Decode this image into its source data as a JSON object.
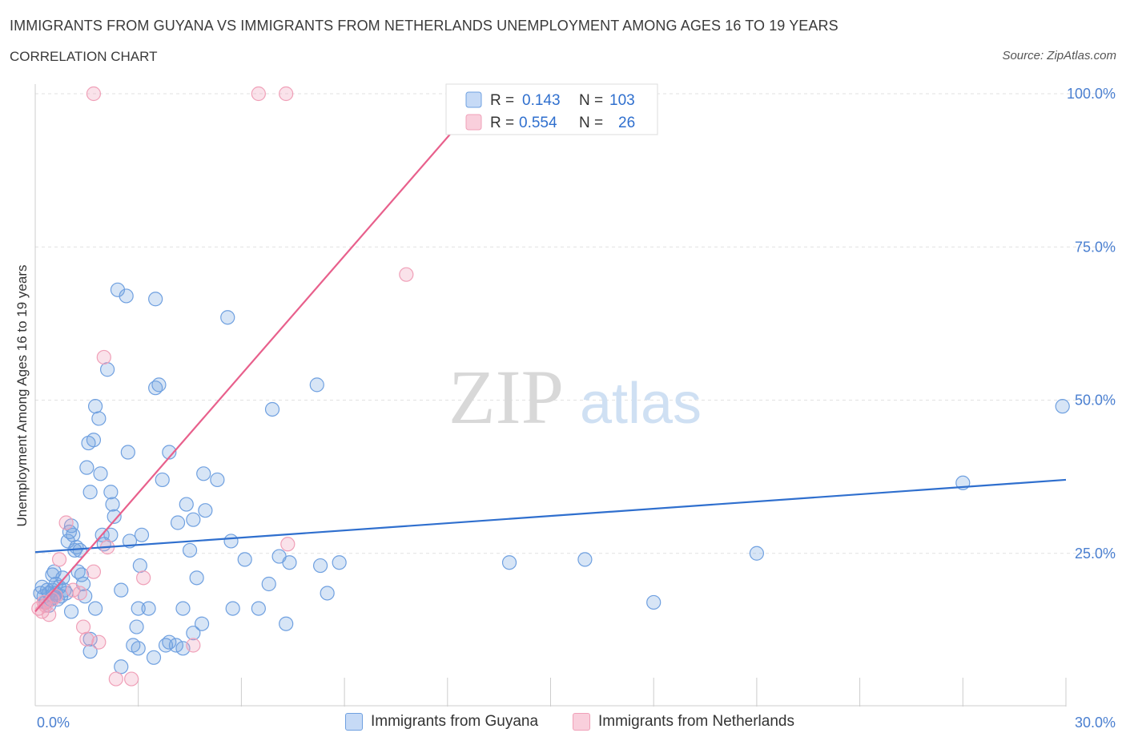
{
  "header": {
    "title": "IMMIGRANTS FROM GUYANA VS IMMIGRANTS FROM NETHERLANDS UNEMPLOYMENT AMONG AGES 16 TO 19 YEARS",
    "subtitle": "CORRELATION CHART",
    "source": "Source: ZipAtlas.com"
  },
  "watermark": {
    "zip": "ZIP",
    "atlas": "atlas"
  },
  "stats": [
    {
      "r_label": "R =",
      "r_value": "0.143",
      "n_label": "N =",
      "n_value": "103",
      "color": "#6fa0e0"
    },
    {
      "r_label": "R =",
      "r_value": "0.554",
      "n_label": "N =",
      "n_value": "26",
      "color": "#f0a0b8"
    }
  ],
  "legend": [
    {
      "label": "Immigrants from Guyana",
      "color": "#6fa0e0"
    },
    {
      "label": "Immigrants from Netherlands",
      "color": "#f0a0b8"
    }
  ],
  "chart_data": {
    "type": "scatter",
    "ylabel": "Unemployment Among Ages 16 to 19 years",
    "xlim": [
      0,
      30
    ],
    "ylim": [
      0,
      100
    ],
    "x_tick_labels": [
      "0.0%",
      "30.0%"
    ],
    "y_tick_labels": [
      "25.0%",
      "50.0%",
      "75.0%",
      "100.0%"
    ],
    "y_ticks": [
      25,
      50,
      75,
      100
    ],
    "grid": true,
    "series": [
      {
        "name": "Immigrants from Guyana",
        "color": "#6fa0e0",
        "line_color": "#2f6fce",
        "trend": {
          "x": [
            0,
            30
          ],
          "y": [
            25.2,
            37.0
          ]
        },
        "points": [
          [
            0.15,
            18.5
          ],
          [
            0.2,
            19.5
          ],
          [
            0.25,
            18
          ],
          [
            0.3,
            17
          ],
          [
            0.35,
            19
          ],
          [
            0.4,
            18.5
          ],
          [
            0.45,
            17.5
          ],
          [
            0.5,
            19
          ],
          [
            0.55,
            18
          ],
          [
            0.6,
            18.5
          ],
          [
            0.65,
            17.5
          ],
          [
            0.7,
            19.5
          ],
          [
            0.5,
            21.5
          ],
          [
            0.6,
            20
          ],
          [
            0.75,
            18
          ],
          [
            0.8,
            21
          ],
          [
            0.9,
            18.5
          ],
          [
            0.95,
            27
          ],
          [
            1.0,
            28.5
          ],
          [
            1.05,
            29.5
          ],
          [
            1.1,
            28
          ],
          [
            1.15,
            25.5
          ],
          [
            1.2,
            26
          ],
          [
            1.3,
            25.5
          ],
          [
            1.35,
            21.5
          ],
          [
            1.4,
            20
          ],
          [
            1.45,
            18
          ],
          [
            1.5,
            39
          ],
          [
            1.55,
            43
          ],
          [
            1.6,
            35
          ],
          [
            1.7,
            43.5
          ],
          [
            1.75,
            49
          ],
          [
            1.85,
            47
          ],
          [
            1.9,
            38
          ],
          [
            1.95,
            28
          ],
          [
            2.0,
            26.5
          ],
          [
            2.1,
            55
          ],
          [
            2.2,
            35
          ],
          [
            2.25,
            33
          ],
          [
            2.3,
            31
          ],
          [
            2.4,
            68
          ],
          [
            2.5,
            19
          ],
          [
            2.65,
            67
          ],
          [
            2.7,
            41.5
          ],
          [
            2.75,
            27
          ],
          [
            2.85,
            10
          ],
          [
            2.95,
            13
          ],
          [
            3.0,
            16
          ],
          [
            3.05,
            23
          ],
          [
            3.1,
            28
          ],
          [
            3.3,
            16
          ],
          [
            3.45,
            8
          ],
          [
            3.5,
            66.5
          ],
          [
            3.5,
            52
          ],
          [
            3.6,
            52.5
          ],
          [
            3.7,
            37
          ],
          [
            3.8,
            10
          ],
          [
            3.9,
            41.5
          ],
          [
            4.1,
            10
          ],
          [
            4.15,
            30
          ],
          [
            4.3,
            9.5
          ],
          [
            4.3,
            16
          ],
          [
            4.4,
            33
          ],
          [
            4.5,
            25.5
          ],
          [
            4.6,
            30.5
          ],
          [
            4.7,
            21
          ],
          [
            4.85,
            13.5
          ],
          [
            4.9,
            38
          ],
          [
            4.95,
            32
          ],
          [
            5.3,
            37
          ],
          [
            5.6,
            63.5
          ],
          [
            5.7,
            27
          ],
          [
            5.75,
            16
          ],
          [
            6.1,
            24
          ],
          [
            6.5,
            16
          ],
          [
            6.9,
            48.5
          ],
          [
            7.1,
            24.5
          ],
          [
            7.3,
            13.5
          ],
          [
            7.4,
            23.5
          ],
          [
            8.2,
            52.5
          ],
          [
            8.3,
            23
          ],
          [
            8.5,
            18.5
          ],
          [
            8.85,
            23.5
          ],
          [
            13.8,
            23.5
          ],
          [
            16.0,
            24
          ],
          [
            18.0,
            17
          ],
          [
            21.0,
            25
          ],
          [
            27.0,
            36.5
          ],
          [
            29.9,
            49
          ],
          [
            1.05,
            15.5
          ],
          [
            1.6,
            11
          ],
          [
            1.6,
            9
          ],
          [
            1.75,
            16
          ],
          [
            2.5,
            6.5
          ],
          [
            3.0,
            9.5
          ],
          [
            0.4,
            16.5
          ],
          [
            0.55,
            22
          ],
          [
            0.85,
            19
          ],
          [
            1.25,
            22
          ],
          [
            2.2,
            28
          ],
          [
            3.9,
            10.5
          ],
          [
            4.6,
            12
          ],
          [
            6.8,
            20
          ]
        ]
      },
      {
        "name": "Immigrants from Netherlands",
        "color": "#f0a0b8",
        "line_color": "#e8608c",
        "trend": {
          "x": [
            0,
            13.1
          ],
          "y": [
            15.5,
            100
          ]
        },
        "points": [
          [
            0.1,
            16
          ],
          [
            0.2,
            15.5
          ],
          [
            0.25,
            17
          ],
          [
            0.3,
            16.5
          ],
          [
            0.4,
            15
          ],
          [
            0.5,
            17.5
          ],
          [
            0.6,
            18
          ],
          [
            0.7,
            24
          ],
          [
            0.9,
            30
          ],
          [
            1.1,
            19
          ],
          [
            1.3,
            18.5
          ],
          [
            1.4,
            13
          ],
          [
            1.5,
            11
          ],
          [
            1.7,
            22
          ],
          [
            1.85,
            10.5
          ],
          [
            2.0,
            57
          ],
          [
            2.1,
            26
          ],
          [
            2.35,
            4.5
          ],
          [
            2.8,
            4.5
          ],
          [
            3.15,
            21
          ],
          [
            4.6,
            10
          ],
          [
            1.7,
            100
          ],
          [
            6.5,
            100
          ],
          [
            7.3,
            100
          ],
          [
            7.35,
            26.5
          ],
          [
            10.8,
            70.5
          ]
        ]
      }
    ]
  }
}
